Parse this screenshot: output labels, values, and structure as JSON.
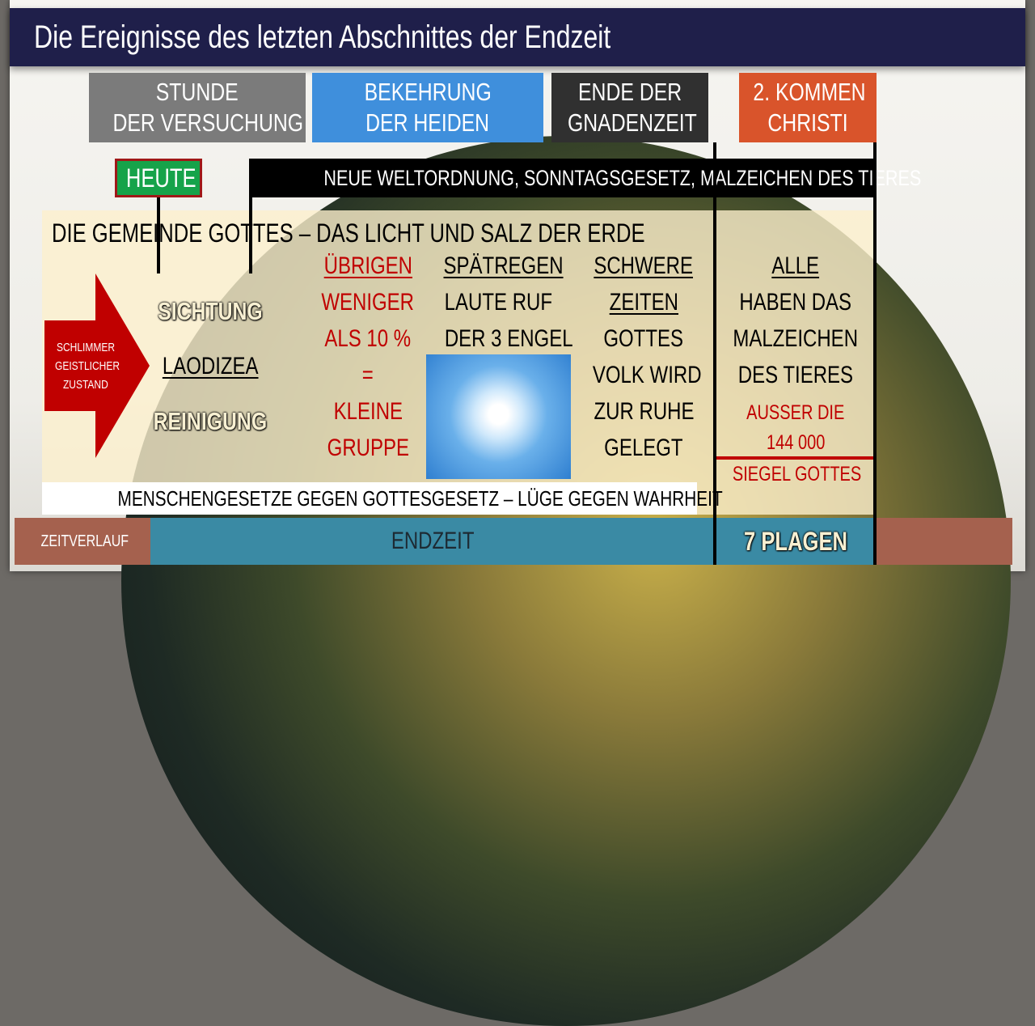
{
  "title": "Die Ereignisse des letzten Abschnittes der Endzeit",
  "headers": [
    {
      "line1": "STUNDE",
      "line2": "DER VERSUCHUNG",
      "color": "#7b7b7b"
    },
    {
      "line1": "BEKEHRUNG",
      "line2": "DER HEIDEN",
      "color": "#3f8fdc"
    },
    {
      "line1": "ENDE DER",
      "line2": "GNADENZEIT",
      "color": "#303030"
    },
    {
      "line1": "2. KOMMEN",
      "line2": "CHRISTI",
      "color": "#d9542b"
    }
  ],
  "today": "HEUTE",
  "nwo": "NEUE WELTORDNUNG, SONNTAGSGESETZ, MALZEICHEN DES TIERES",
  "church": "DIE GEMEINDE GOTTES – DAS LICHT UND SALZ DER ERDE",
  "arrow": {
    "line1": "SCHLIMMER",
    "line2": "GEISTLICHER",
    "line3": "ZUSTAND"
  },
  "state": {
    "sifting": "SICHTUNG",
    "laodicea": "LAODIZEA",
    "cleansing": "REINIGUNG"
  },
  "remnant": {
    "head": "ÜBRIGEN",
    "l1": "WENIGER",
    "l2": "ALS 10 %",
    "l3": "=",
    "l4": "KLEINE",
    "l5": "GRUPPE"
  },
  "latter_rain": {
    "head": "SPÄTREGEN",
    "l1": "LAUTE RUF",
    "l2": "DER 3 ENGEL"
  },
  "hard_times": {
    "h1": "SCHWERE",
    "h2": "ZEITEN",
    "l1": "GOTTES",
    "l2": "VOLK WIRD",
    "l3": "ZUR RUHE",
    "l4": "GELEGT"
  },
  "all": {
    "head": "ALLE",
    "l1": "HABEN DAS",
    "l2": "MALZEICHEN",
    "l3": "DES TIERES",
    "r1": "AUSSER DIE",
    "r2": "144 000",
    "r3": "SIEGEL GOTTES"
  },
  "laws": "MENSCHENGESETZE GEGEN GOTTESGESETZ – LÜGE GEGEN WAHRHEIT",
  "timeline": {
    "label": "ZEITVERLAUF",
    "endtime": "ENDZEIT",
    "plagues": "7 PLAGEN"
  }
}
